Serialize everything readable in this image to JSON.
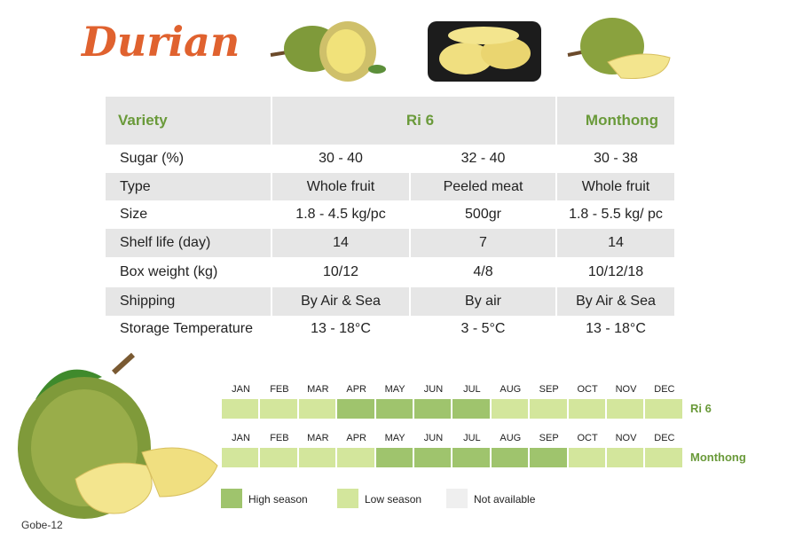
{
  "title": "Durian",
  "table": {
    "header": [
      "Variety",
      "Ri 6",
      "Monthong"
    ],
    "rows": [
      [
        "Sugar (%)",
        "30 - 40",
        "32 - 40",
        "30 - 38"
      ],
      [
        "Type",
        "Whole fruit",
        "Peeled meat",
        "Whole fruit"
      ],
      [
        "Size",
        "1.8 - 4.5 kg/pc",
        "500gr",
        "1.8  - 5.5 kg/ pc"
      ],
      [
        "Shelf life (day)",
        "14",
        "7",
        "14"
      ],
      [
        "Box weight (kg)",
        "10/12",
        "4/8",
        "10/12/18"
      ],
      [
        "Shipping",
        "By Air & Sea",
        "By air",
        "By Air & Sea"
      ],
      [
        "Storage Temperature",
        "13 - 18°C",
        "3 - 5°C",
        "13 - 18°C"
      ]
    ]
  },
  "calendar": {
    "months": [
      "JAN",
      "FEB",
      "MAR",
      "APR",
      "MAY",
      "JUN",
      "JUL",
      "AUG",
      "SEP",
      "OCT",
      "NOV",
      "DEC"
    ],
    "rows": [
      {
        "name": "Ri 6",
        "colors": [
          "#d3e69c",
          "#d3e69c",
          "#d3e69c",
          "#9fc46d",
          "#9fc46d",
          "#9fc46d",
          "#9fc46d",
          "#d3e69c",
          "#d3e69c",
          "#d3e69c",
          "#d3e69c",
          "#d3e69c"
        ]
      },
      {
        "name": "Monthong",
        "colors": [
          "#d3e69c",
          "#d3e69c",
          "#d3e69c",
          "#d3e69c",
          "#9fc46d",
          "#9fc46d",
          "#9fc46d",
          "#9fc46d",
          "#9fc46d",
          "#d3e69c",
          "#d3e69c",
          "#d3e69c"
        ]
      }
    ]
  },
  "legend": [
    {
      "label": "High season",
      "color": "#9fc46d"
    },
    {
      "label": "Low season",
      "color": "#d3e69c"
    },
    {
      "label": "Not available",
      "color": "#efefef"
    }
  ],
  "footer": "Gobe-12"
}
